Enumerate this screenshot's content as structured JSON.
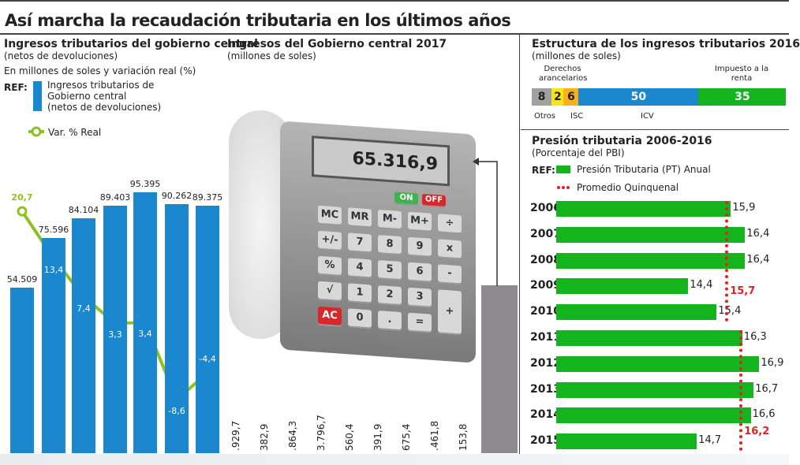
{
  "title": "Así marcha la recaudación tributaria en los últimos años",
  "left": {
    "title": "Ingresos tributarios del gobierno central",
    "subtitle": "(netos de devoluciones)",
    "units": "En millones de soles y variación real (%)",
    "ref": "REF:",
    "legend_bar": [
      "Ingresos tributarios de",
      "Gobierno central",
      "(netos de devoluciones)"
    ],
    "legend_line": "Var. % Real"
  },
  "middle": {
    "title": "Ingresos del Gobierno central 2017",
    "subtitle": "(millones de soles)",
    "display": "65.316,9",
    "keys": [
      "MC",
      "MR",
      "M-",
      "M+",
      "÷",
      "+/-",
      "7",
      "8",
      "9",
      "x",
      "%",
      "4",
      "5",
      "6",
      "-",
      "√",
      "1",
      "2",
      "3",
      "+",
      "AC",
      "0",
      ".",
      "="
    ],
    "on": "ON",
    "off": "OFF",
    "monthly": [
      ".929,7",
      "382,9",
      ".864,3",
      "3.796,7",
      "560,4",
      "391,9",
      "675,4",
      ".461,8",
      "153,8"
    ]
  },
  "right_top": {
    "title": "Estructura de los ingresos tributarios 2016",
    "subtitle": "(millones de soles)"
  },
  "right_bottom": {
    "title": "Presión tributaria 2006-2016",
    "subtitle": "(Porcentaje del PBI)",
    "ref": "REF:",
    "legend_bar": "Presión Tributaria (PT) Anual",
    "legend_dash": "Promedio Quinquenal"
  },
  "chart_data": [
    {
      "type": "bar",
      "title": "Ingresos tributarios del gobierno central",
      "categories": [
        "",
        "",
        "",
        "",
        "",
        "",
        ""
      ],
      "series": [
        {
          "name": "Ingresos tributarios de Gobierno central (netos de devoluciones)",
          "type": "bar",
          "values": [
            54509,
            75596,
            84104,
            89403,
            95395,
            90262,
            89375
          ],
          "labels": [
            "54.509",
            "75.596",
            "84.104",
            "89.403",
            "95.395",
            "90.262",
            "89.375"
          ],
          "color": "#1a87cf"
        },
        {
          "name": "Var. % Real",
          "type": "line",
          "values": [
            20.7,
            13.4,
            7.4,
            3.3,
            3.4,
            -8.6,
            -4.4
          ],
          "labels": [
            "20,7",
            "13,4",
            "7,4",
            "3,3",
            "3,4",
            "-8,6",
            "-4,4"
          ],
          "color": "#8cc21f"
        }
      ]
    },
    {
      "type": "bar",
      "orientation": "stacked-horizontal",
      "title": "Estructura de los ingresos tributarios 2016",
      "categories": [
        "Otros",
        "Derechos arancelarios",
        "ISC",
        "ICV",
        "Impuesto a la renta"
      ],
      "values": [
        8,
        2,
        6,
        50,
        35
      ],
      "colors": [
        "#a0a0a0",
        "#f5e616",
        "#f7b21b",
        "#1a87cf",
        "#13b41d"
      ]
    },
    {
      "type": "bar",
      "orientation": "horizontal",
      "title": "Presión tributaria 2006-2016",
      "categories": [
        "2006",
        "2007",
        "2008",
        "2009",
        "2010",
        "2011",
        "2012",
        "2013",
        "2014",
        "2015"
      ],
      "values": [
        15.9,
        16.4,
        16.4,
        14.4,
        15.4,
        16.3,
        16.9,
        16.7,
        16.6,
        14.7
      ],
      "labels": [
        "15,9",
        "16,4",
        "16,4",
        "14,4",
        "15,4",
        "16,3",
        "16,9",
        "16,7",
        "16,6",
        "14,7"
      ],
      "averages": [
        {
          "value": 15.7,
          "label": "15,7",
          "years": [
            "2006",
            "2010"
          ]
        },
        {
          "value": 16.2,
          "label": "16,2",
          "years": [
            "2011",
            "2015"
          ]
        }
      ],
      "color": "#13b41d",
      "avg_color": "#e32020"
    }
  ]
}
